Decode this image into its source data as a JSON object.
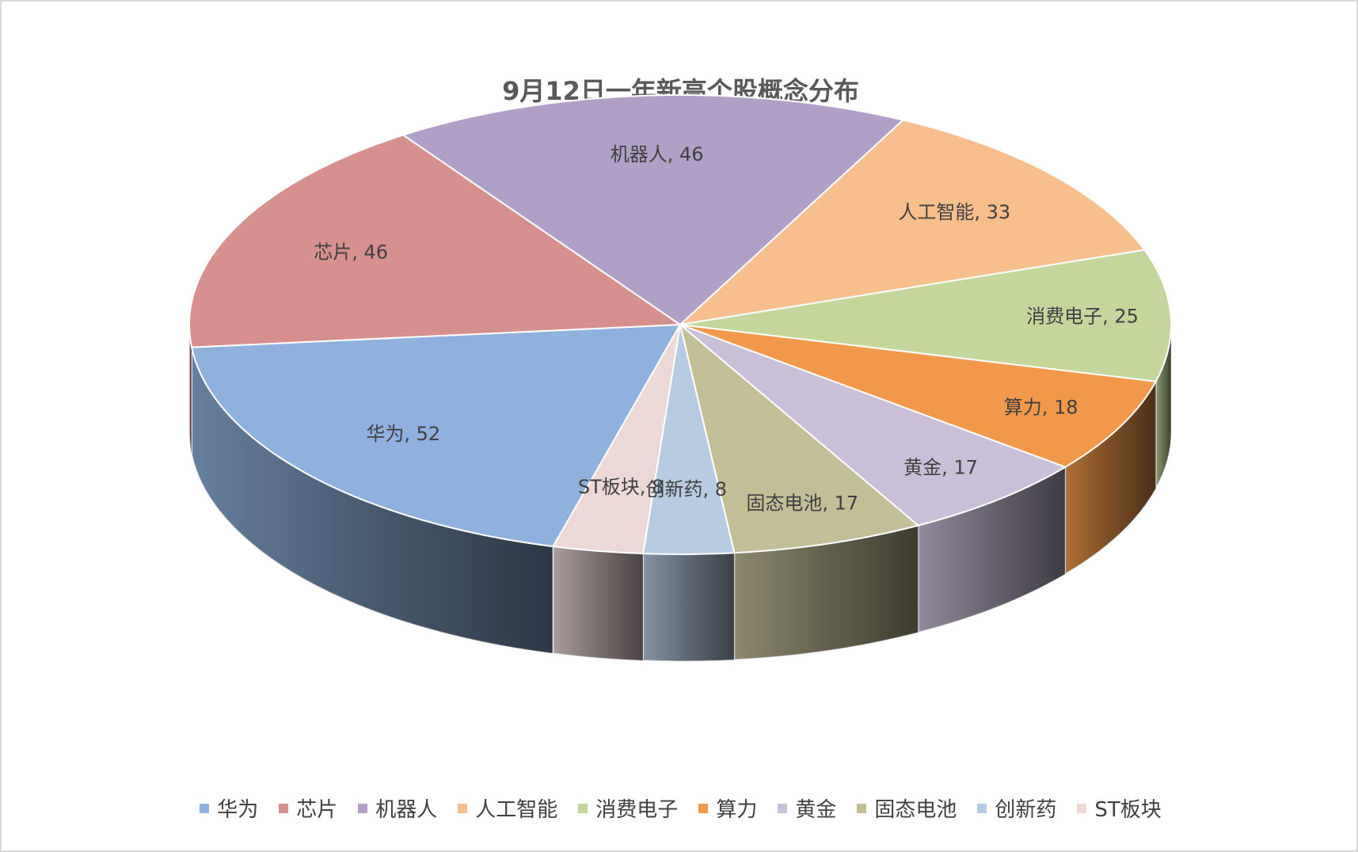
{
  "chart_data": {
    "type": "pie",
    "title": "9月12日一年新高个股概念分布",
    "categories": [
      "华为",
      "芯片",
      "机器人",
      "人工智能",
      "消费电子",
      "算力",
      "黄金",
      "固态电池",
      "创新药",
      "ST板块"
    ],
    "values": [
      52,
      46,
      46,
      33,
      25,
      18,
      17,
      17,
      8,
      8
    ],
    "labels": [
      "华为, 52",
      "芯片, 46",
      "机器人, 46",
      "人工智能, 33",
      "消费电子, 25",
      "算力, 18",
      "黄金, 17",
      "固态电池, 17",
      "创新药, 8",
      "ST板块, 8"
    ],
    "colors": [
      "#8EB1DD",
      "#D6908D",
      "#B09FC7",
      "#F7BE8E",
      "#C4D69B",
      "#F2984A",
      "#C9BFD9",
      "#C2BE96",
      "#B7CCE3",
      "#EDD8D8"
    ],
    "legend_position": "bottom",
    "style": "3d"
  }
}
